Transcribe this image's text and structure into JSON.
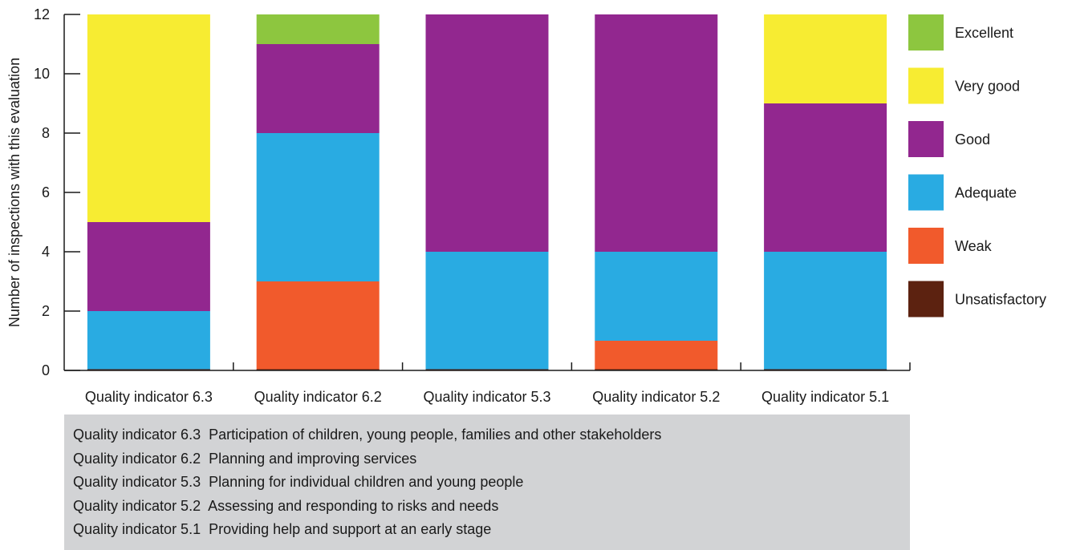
{
  "chart_data": {
    "type": "bar",
    "stacked": true,
    "title": "",
    "xlabel": "",
    "ylabel": "Number of inspections with this evaluation",
    "ylim": [
      0,
      12
    ],
    "yticks": [
      0,
      2,
      4,
      6,
      8,
      10,
      12
    ],
    "grid": false,
    "legend_position": "right",
    "categories": [
      "Quality indicator 6.3",
      "Quality indicator 6.2",
      "Quality indicator 5.3",
      "Quality indicator 5.2",
      "Quality indicator 5.1"
    ],
    "series": [
      {
        "name": "Unsatisfactory",
        "color": "#5c2210",
        "values": [
          0,
          0,
          0,
          0,
          0
        ]
      },
      {
        "name": "Weak",
        "color": "#f15a2c",
        "values": [
          0,
          3,
          0,
          1,
          0
        ]
      },
      {
        "name": "Adequate",
        "color": "#29abe2",
        "values": [
          2,
          5,
          4,
          3,
          4
        ]
      },
      {
        "name": "Good",
        "color": "#92278f",
        "values": [
          3,
          3,
          8,
          8,
          5
        ]
      },
      {
        "name": "Very good",
        "color": "#f7ec32",
        "values": [
          7,
          0,
          0,
          0,
          3
        ]
      },
      {
        "name": "Excellent",
        "color": "#8dc63f",
        "values": [
          0,
          1,
          0,
          0,
          0
        ]
      }
    ]
  },
  "notes": [
    "Quality indicator 6.3  Participation of children, young people, families and other stakeholders",
    "Quality indicator 6.2  Planning and improving services",
    "Quality indicator 5.3  Planning for individual children and young people",
    "Quality indicator 5.2  Assessing and responding to risks and needs",
    "Quality indicator 5.1  Providing help and support at an early stage"
  ]
}
